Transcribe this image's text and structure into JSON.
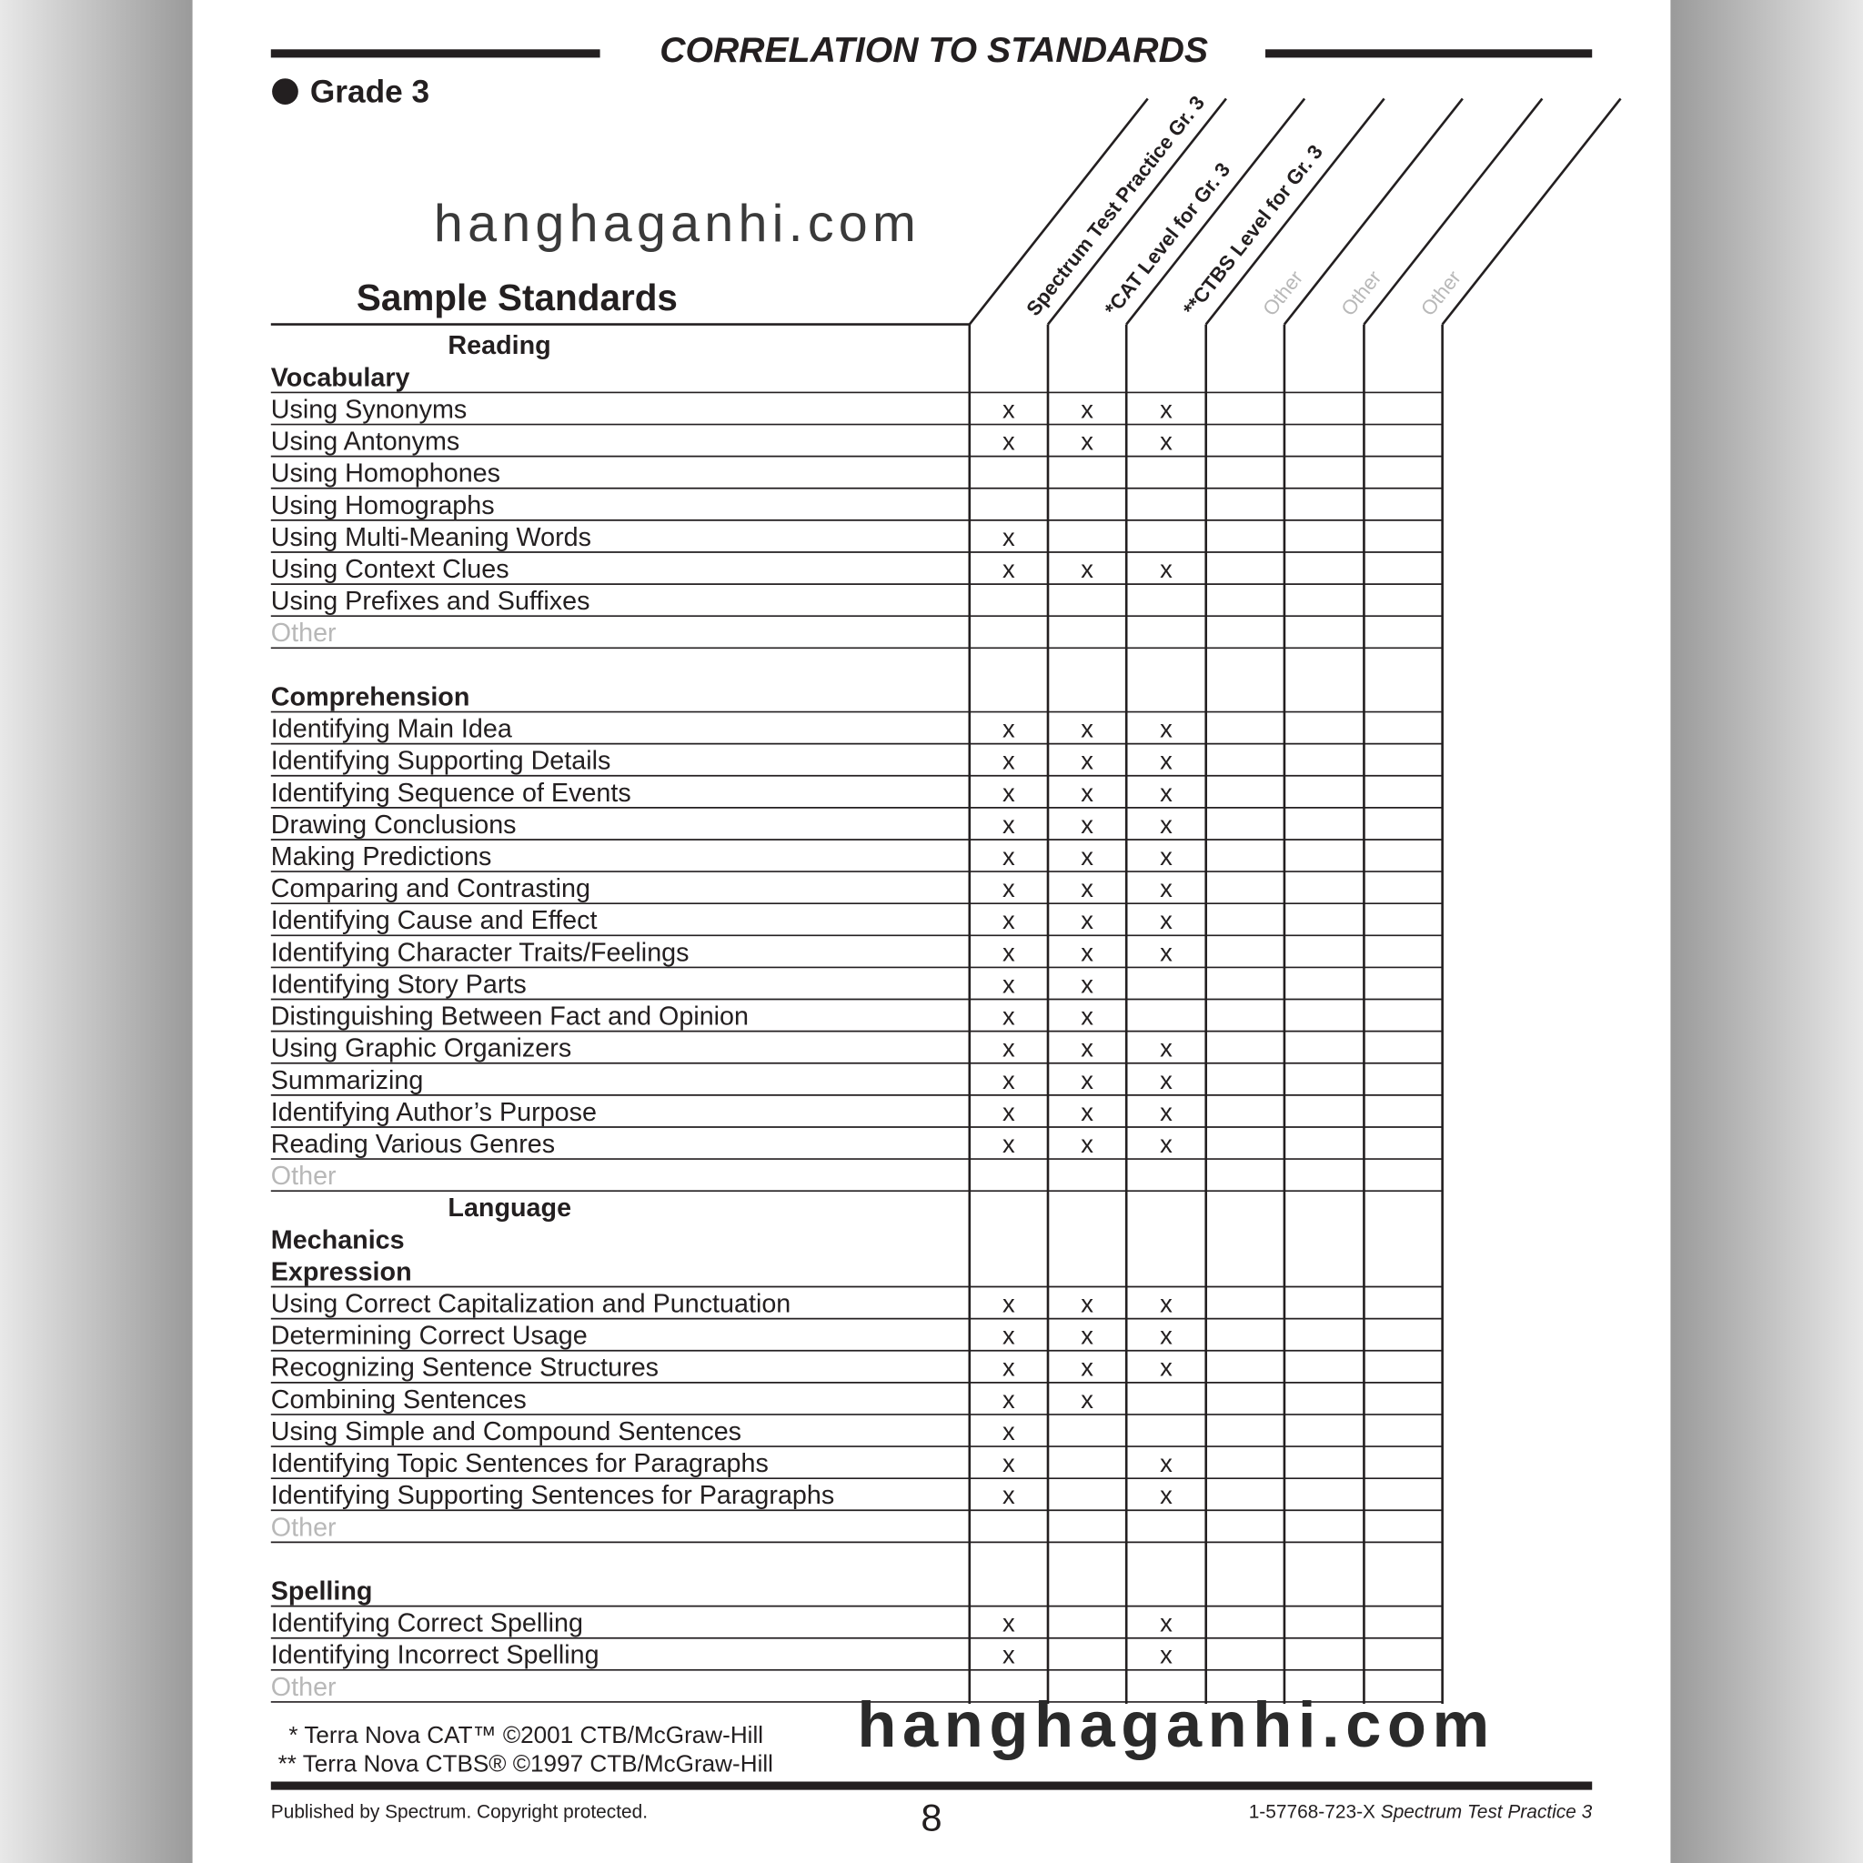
{
  "header": {
    "title": "CORRELATION TO STANDARDS",
    "grade": "Grade 3",
    "heading": "Sample Standards"
  },
  "watermarks": [
    "hanghaganhi.com",
    "hanghaganhi.com"
  ],
  "columns": [
    "Spectrum Test Practice Gr. 3",
    "*CAT Level for Gr. 3",
    "**CTBS Level for Gr. 3",
    "Other",
    "Other",
    "Other"
  ],
  "rows": [
    {
      "label": "Reading",
      "style": "section"
    },
    {
      "label": "Vocabulary",
      "style": "heading"
    },
    {
      "label": "Using Synonyms",
      "style": "item",
      "cells": [
        "x",
        "x",
        "x",
        null,
        null,
        null
      ]
    },
    {
      "label": "Using Antonyms",
      "style": "item",
      "cells": [
        "x",
        "x",
        "x",
        null,
        null,
        null
      ]
    },
    {
      "label": "Using Homophones",
      "style": "item",
      "cells": [
        null,
        null,
        null,
        null,
        null,
        null
      ]
    },
    {
      "label": "Using Homographs",
      "style": "item",
      "cells": [
        null,
        null,
        null,
        null,
        null,
        null
      ]
    },
    {
      "label": "Using Multi-Meaning Words",
      "style": "item",
      "cells": [
        "x",
        null,
        null,
        null,
        null,
        null
      ]
    },
    {
      "label": "Using Context Clues",
      "style": "item",
      "cells": [
        "x",
        "x",
        "x",
        null,
        null,
        null
      ]
    },
    {
      "label": "Using Prefixes and Suffixes",
      "style": "item",
      "cells": [
        null,
        null,
        null,
        null,
        null,
        null
      ]
    },
    {
      "label": "Other",
      "style": "other"
    },
    {
      "label": null,
      "style": "blank"
    },
    {
      "label": "Comprehension",
      "style": "heading"
    },
    {
      "label": "Identifying Main Idea",
      "style": "item",
      "cells": [
        "x",
        "x",
        "x",
        null,
        null,
        null
      ]
    },
    {
      "label": "Identifying Supporting Details",
      "style": "item",
      "cells": [
        "x",
        "x",
        "x",
        null,
        null,
        null
      ]
    },
    {
      "label": "Identifying Sequence of Events",
      "style": "item",
      "cells": [
        "x",
        "x",
        "x",
        null,
        null,
        null
      ]
    },
    {
      "label": "Drawing Conclusions",
      "style": "item",
      "cells": [
        "x",
        "x",
        "x",
        null,
        null,
        null
      ]
    },
    {
      "label": "Making Predictions",
      "style": "item",
      "cells": [
        "x",
        "x",
        "x",
        null,
        null,
        null
      ]
    },
    {
      "label": "Comparing and Contrasting",
      "style": "item",
      "cells": [
        "x",
        "x",
        "x",
        null,
        null,
        null
      ]
    },
    {
      "label": "Identifying Cause and Effect",
      "style": "item",
      "cells": [
        "x",
        "x",
        "x",
        null,
        null,
        null
      ]
    },
    {
      "label": "Identifying Character Traits/Feelings",
      "style": "item",
      "cells": [
        "x",
        "x",
        "x",
        null,
        null,
        null
      ]
    },
    {
      "label": "Identifying Story Parts",
      "style": "item",
      "cells": [
        "x",
        "x",
        null,
        null,
        null,
        null
      ]
    },
    {
      "label": "Distinguishing Between Fact and Opinion",
      "style": "item",
      "cells": [
        "x",
        "x",
        null,
        null,
        null,
        null
      ]
    },
    {
      "label": "Using Graphic Organizers",
      "style": "item",
      "cells": [
        "x",
        "x",
        "x",
        null,
        null,
        null
      ]
    },
    {
      "label": "Summarizing",
      "style": "item",
      "cells": [
        "x",
        "x",
        "x",
        null,
        null,
        null
      ]
    },
    {
      "label": "Identifying Author’s Purpose",
      "style": "item",
      "cells": [
        "x",
        "x",
        "x",
        null,
        null,
        null
      ]
    },
    {
      "label": "Reading Various Genres",
      "style": "item",
      "cells": [
        "x",
        "x",
        "x",
        null,
        null,
        null
      ]
    },
    {
      "label": "Other",
      "style": "other"
    },
    {
      "label": "Language",
      "style": "section"
    },
    {
      "label": "Mechanics",
      "style": "heading"
    },
    {
      "label": "Expression",
      "style": "heading"
    },
    {
      "label": "Using Correct Capitalization and Punctuation",
      "style": "item",
      "cells": [
        "x",
        "x",
        "x",
        null,
        null,
        null
      ]
    },
    {
      "label": "Determining Correct Usage",
      "style": "item",
      "cells": [
        "x",
        "x",
        "x",
        null,
        null,
        null
      ]
    },
    {
      "label": "Recognizing Sentence Structures",
      "style": "item",
      "cells": [
        "x",
        "x",
        "x",
        null,
        null,
        null
      ]
    },
    {
      "label": "Combining Sentences",
      "style": "item",
      "cells": [
        "x",
        "x",
        null,
        null,
        null,
        null
      ]
    },
    {
      "label": "Using Simple and Compound Sentences",
      "style": "item",
      "cells": [
        "x",
        null,
        null,
        null,
        null,
        null
      ]
    },
    {
      "label": "Identifying Topic Sentences for Paragraphs",
      "style": "item",
      "cells": [
        "x",
        null,
        "x",
        null,
        null,
        null
      ]
    },
    {
      "label": "Identifying Supporting Sentences for Paragraphs",
      "style": "item",
      "cells": [
        "x",
        null,
        "x",
        null,
        null,
        null
      ]
    },
    {
      "label": "Other",
      "style": "other"
    },
    {
      "label": null,
      "style": "blank"
    },
    {
      "label": "Spelling",
      "style": "heading"
    },
    {
      "label": "Identifying Correct Spelling",
      "style": "item",
      "cells": [
        "x",
        null,
        "x",
        null,
        null,
        null
      ]
    },
    {
      "label": "Identifying Incorrect Spelling",
      "style": "item",
      "cells": [
        "x",
        null,
        "x",
        null,
        null,
        null
      ]
    },
    {
      "label": "Other",
      "style": "other"
    }
  ],
  "footnotes": [
    "* Terra Nova CAT™    ©2001 CTB/McGraw-Hill",
    "** Terra Nova  CTBS®   ©1997 CTB/McGraw-Hill"
  ],
  "footer": {
    "publisher": "Published by Spectrum. Copyright protected.",
    "page": "8",
    "isbn": "1-57768-723-X",
    "book": "Spectrum Test Practice 3"
  }
}
